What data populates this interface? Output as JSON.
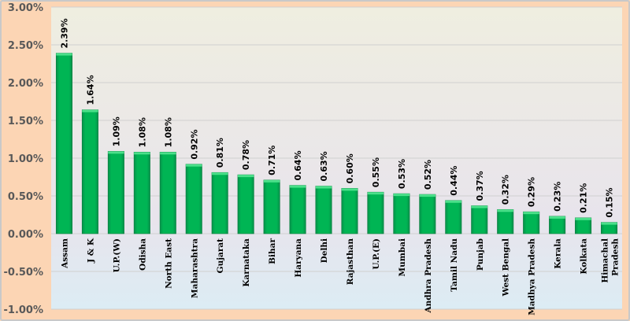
{
  "chart_data": {
    "type": "bar",
    "title": "",
    "xlabel": "",
    "ylabel": "",
    "ylim": [
      -0.01,
      0.03
    ],
    "yticks": [
      "3.00%",
      "2.50%",
      "2.00%",
      "1.50%",
      "1.00%",
      "0.50%",
      "0.00%",
      "-0.50%",
      "-1.00%"
    ],
    "ytick_values": [
      0.03,
      0.025,
      0.02,
      0.015,
      0.01,
      0.005,
      0,
      -0.005,
      -0.01
    ],
    "categories": [
      "Assam",
      "J & K",
      "U.P.(W)",
      "Odisha",
      "North East",
      "Maharashtra",
      "Gujarat",
      "Karnataka",
      "Bihar",
      "Haryana",
      "Delhi",
      "Rajasthan",
      "U.P.(E)",
      "Mumbai",
      "Andhra Pradesh",
      "Tamil Nadu",
      "Punjab",
      "West Bengal",
      "Madhya Pradesh",
      "Kerala",
      "Kolkata",
      "Himachal Pradesh"
    ],
    "values": [
      0.0239,
      0.0164,
      0.0109,
      0.0108,
      0.0108,
      0.0092,
      0.0081,
      0.0078,
      0.0071,
      0.0064,
      0.0063,
      0.006,
      0.0055,
      0.0053,
      0.0052,
      0.0044,
      0.0037,
      0.0032,
      0.0029,
      0.0023,
      0.0021,
      0.0015
    ],
    "data_labels": [
      "2.39%",
      "1.64%",
      "1.09%",
      "1.08%",
      "1.08%",
      "0.92%",
      "0.81%",
      "0.78%",
      "0.71%",
      "0.64%",
      "0.63%",
      "0.60%",
      "0.55%",
      "0.53%",
      "0.52%",
      "0.44%",
      "0.37%",
      "0.32%",
      "0.29%",
      "0.23%",
      "0.21%",
      "0.15%"
    ],
    "grid": true,
    "colors": {
      "bar": "#00b050",
      "bar_top": "#4be08a",
      "outer_bg": "#fcd5b4"
    }
  }
}
